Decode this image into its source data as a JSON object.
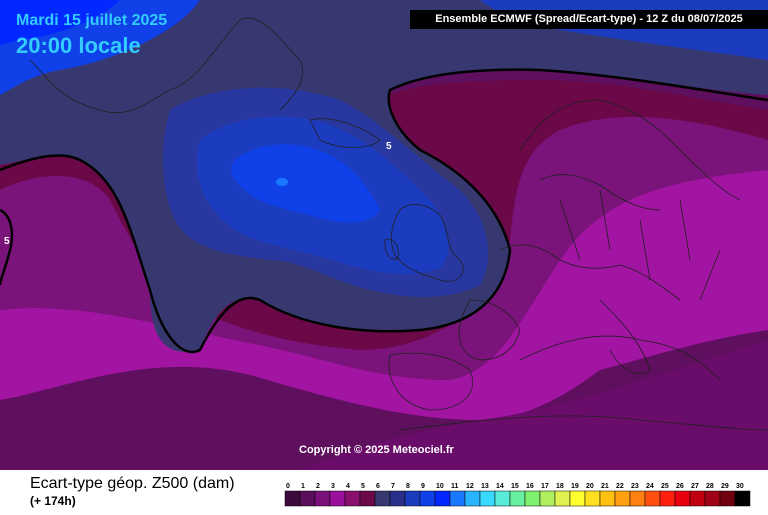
{
  "header": {
    "date": "Mardi 15 juillet 2025",
    "local_time": "20:00 locale",
    "model_info": "Ensemble ECMWF  (Spread/Ecart-type) - 12 Z du 08/07/2025"
  },
  "map": {
    "copyright": "Copyright © 2025 Meteociel.fr",
    "contour_labels": [
      "5",
      "5"
    ]
  },
  "footer": {
    "parameter": "Ecart-type géop. Z500 (dam)",
    "lead_time": "(+ 174h)"
  },
  "legend": {
    "ticks": [
      "0",
      "1",
      "2",
      "3",
      "4",
      "5",
      "6",
      "7",
      "8",
      "9",
      "10",
      "11",
      "12",
      "13",
      "14",
      "15",
      "16",
      "17",
      "18",
      "19",
      "20",
      "21",
      "22",
      "23",
      "24",
      "25",
      "26",
      "27",
      "28",
      "29",
      "30"
    ],
    "colors": [
      "#3d0a3d",
      "#5a0f5a",
      "#7a107a",
      "#9a109a",
      "#8a1070",
      "#6a0848",
      "#383870",
      "#28308a",
      "#1c3cc0",
      "#1040e8",
      "#0028ff",
      "#1878ff",
      "#28b4ff",
      "#38d8ff",
      "#58ecd8",
      "#68f0a0",
      "#80f070",
      "#b0f060",
      "#e0f050",
      "#ffff30",
      "#ffe020",
      "#ffc010",
      "#ffa010",
      "#ff8010",
      "#ff5010",
      "#ff2010",
      "#e80010",
      "#c00010",
      "#a00018",
      "#700010",
      "#000000"
    ]
  }
}
